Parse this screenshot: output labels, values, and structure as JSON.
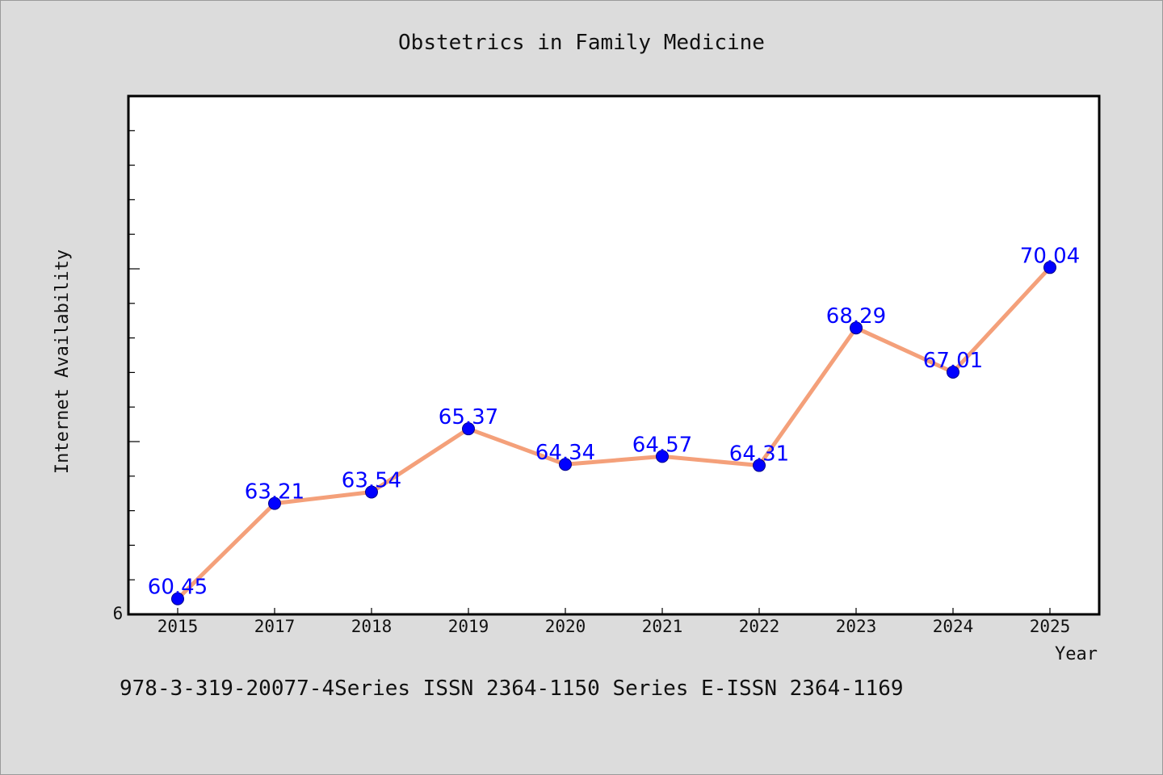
{
  "chart_data": {
    "type": "line",
    "title": "Obstetrics in Family Medicine",
    "xlabel": "Year",
    "ylabel": "Internet Availability",
    "categories": [
      "2015",
      "2017",
      "2018",
      "2019",
      "2020",
      "2021",
      "2022",
      "2023",
      "2024",
      "2025"
    ],
    "series": [
      {
        "values": [
          60.45,
          63.21,
          63.54,
          65.37,
          64.34,
          64.57,
          64.31,
          68.29,
          67.01,
          70.04
        ]
      }
    ],
    "data_labels": [
      "60.45",
      "63.21",
      "63.54",
      "65.37",
      "64.34",
      "64.57",
      "64.31",
      "68.29",
      "67.01",
      "70.04"
    ],
    "ylim": [
      60,
      75
    ],
    "y_tick_labels": [
      "6"
    ],
    "grid": false,
    "legend": "none",
    "line_color": "#f4a07a",
    "marker_color": "#0000ff",
    "label_color": "#0000ff"
  },
  "footer": {
    "text": "978-3-319-20077-4Series ISSN 2364-1150 Series E-ISSN 2364-1169"
  }
}
